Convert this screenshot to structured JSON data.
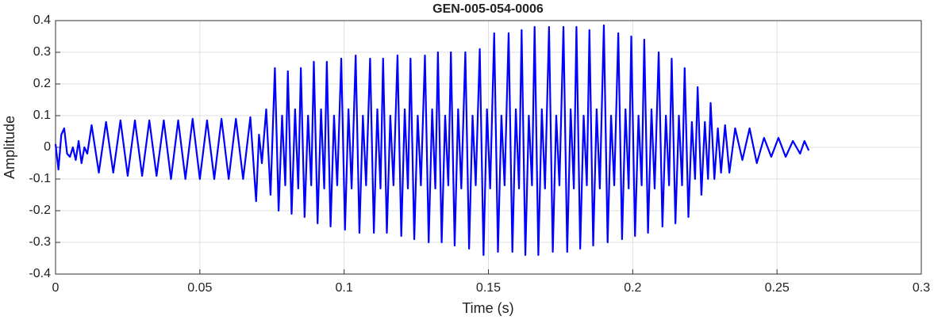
{
  "chart_data": {
    "type": "line",
    "title": "GEN-005-054-0006",
    "x_label": "Time (s)",
    "y_label": "Amplitude",
    "color": "#0000ff",
    "grid": true,
    "xlim": [
      0,
      0.3
    ],
    "xticks": [
      0,
      0.05,
      0.1,
      0.15,
      0.2,
      0.25,
      0.3
    ],
    "ylim": [
      -0.4,
      0.4
    ],
    "yticks": [
      -0.4,
      -0.3,
      -0.2,
      -0.1,
      0,
      0.1,
      0.2,
      0.3,
      0.4
    ],
    "x": [
      0,
      0.001,
      0.002,
      0.003,
      0.004,
      0.005,
      0.006,
      0.007,
      0.008,
      0.009,
      0.01,
      0.011,
      0.0125,
      0.015,
      0.0175,
      0.02,
      0.0225,
      0.025,
      0.0275,
      0.03,
      0.0325,
      0.035,
      0.0375,
      0.04,
      0.0425,
      0.045,
      0.0475,
      0.05,
      0.0525,
      0.055,
      0.0575,
      0.06,
      0.0625,
      0.065,
      0.0675,
      0.0695,
      0.0705,
      0.0715,
      0.073,
      0.0745,
      0.076,
      0.0773,
      0.0785,
      0.0796,
      0.0805,
      0.0818,
      0.083,
      0.0841,
      0.085,
      0.0863,
      0.0875,
      0.0886,
      0.0895,
      0.0908,
      0.092,
      0.0931,
      0.094,
      0.0953,
      0.0965,
      0.0976,
      0.099,
      0.1003,
      0.1015,
      0.1026,
      0.104,
      0.1053,
      0.1065,
      0.1076,
      0.109,
      0.1103,
      0.1115,
      0.1126,
      0.1135,
      0.1148,
      0.116,
      0.1171,
      0.1185,
      0.1198,
      0.121,
      0.1221,
      0.123,
      0.1243,
      0.1255,
      0.1266,
      0.128,
      0.1293,
      0.1305,
      0.1316,
      0.1325,
      0.1338,
      0.135,
      0.1361,
      0.137,
      0.1383,
      0.1395,
      0.1406,
      0.142,
      0.1433,
      0.1445,
      0.1456,
      0.147,
      0.1483,
      0.1495,
      0.1506,
      0.152,
      0.1533,
      0.1545,
      0.1556,
      0.157,
      0.1583,
      0.1595,
      0.1606,
      0.1615,
      0.1628,
      0.164,
      0.1651,
      0.166,
      0.1673,
      0.1685,
      0.1696,
      0.171,
      0.1723,
      0.1735,
      0.1746,
      0.176,
      0.1773,
      0.1785,
      0.1796,
      0.1805,
      0.1818,
      0.183,
      0.1841,
      0.185,
      0.1863,
      0.1875,
      0.1886,
      0.19,
      0.1913,
      0.1925,
      0.1936,
      0.195,
      0.1963,
      0.1975,
      0.1986,
      0.1995,
      0.2008,
      0.202,
      0.2031,
      0.204,
      0.2053,
      0.2065,
      0.2076,
      0.209,
      0.2103,
      0.2115,
      0.2126,
      0.2135,
      0.2148,
      0.216,
      0.2171,
      0.218,
      0.2193,
      0.2205,
      0.2216,
      0.2225,
      0.2238,
      0.225,
      0.2261,
      0.227,
      0.2283,
      0.2295,
      0.2306,
      0.232,
      0.2335,
      0.2355,
      0.238,
      0.2405,
      0.243,
      0.2455,
      0.248,
      0.2505,
      0.253,
      0.2555,
      0.258,
      0.2595,
      0.261
    ],
    "values": [
      0.01,
      -0.07,
      0.04,
      0.06,
      -0.02,
      -0.03,
      0,
      -0.04,
      0.02,
      -0.05,
      0,
      -0.02,
      0.07,
      -0.08,
      0.08,
      -0.08,
      0.085,
      -0.09,
      0.085,
      -0.09,
      0.085,
      -0.09,
      0.085,
      -0.1,
      0.085,
      -0.1,
      0.09,
      -0.1,
      0.085,
      -0.1,
      0.09,
      -0.1,
      0.09,
      -0.1,
      0.095,
      -0.17,
      0.04,
      -0.05,
      0.12,
      -0.15,
      0.25,
      -0.2,
      0.1,
      -0.12,
      0.24,
      -0.21,
      0.12,
      -0.13,
      0.25,
      -0.22,
      0.1,
      -0.12,
      0.27,
      -0.24,
      0.12,
      -0.13,
      0.27,
      -0.25,
      0.1,
      -0.12,
      0.28,
      -0.26,
      0.12,
      -0.13,
      0.29,
      -0.27,
      0.1,
      -0.12,
      0.28,
      -0.27,
      0.12,
      -0.13,
      0.28,
      -0.27,
      0.1,
      -0.12,
      0.29,
      -0.28,
      0.12,
      -0.13,
      0.28,
      -0.29,
      0.1,
      -0.12,
      0.29,
      -0.3,
      0.12,
      -0.13,
      0.3,
      -0.3,
      0.1,
      -0.12,
      0.3,
      -0.31,
      0.12,
      -0.13,
      0.3,
      -0.32,
      0.1,
      -0.12,
      0.31,
      -0.34,
      0.12,
      -0.13,
      0.36,
      -0.33,
      0.1,
      -0.12,
      0.36,
      -0.33,
      0.12,
      -0.13,
      0.37,
      -0.34,
      0.1,
      -0.12,
      0.38,
      -0.34,
      0.12,
      -0.13,
      0.38,
      -0.33,
      0.1,
      -0.12,
      0.38,
      -0.33,
      0.12,
      -0.13,
      0.38,
      -0.32,
      0.1,
      -0.12,
      0.37,
      -0.31,
      0.12,
      -0.13,
      0.385,
      -0.3,
      0.1,
      -0.12,
      0.36,
      -0.29,
      0.12,
      -0.13,
      0.35,
      -0.28,
      0.1,
      -0.12,
      0.34,
      -0.27,
      0.12,
      -0.13,
      0.3,
      -0.25,
      0.1,
      -0.12,
      0.28,
      -0.24,
      0.1,
      -0.12,
      0.25,
      -0.22,
      0.08,
      -0.1,
      0.19,
      -0.15,
      0.08,
      -0.1,
      0.14,
      -0.1,
      0.06,
      -0.08,
      0.07,
      -0.08,
      0.06,
      -0.04,
      0.06,
      -0.05,
      0.03,
      -0.03,
      0.03,
      -0.03,
      0.02,
      -0.02,
      0.02,
      -0.01
    ]
  }
}
